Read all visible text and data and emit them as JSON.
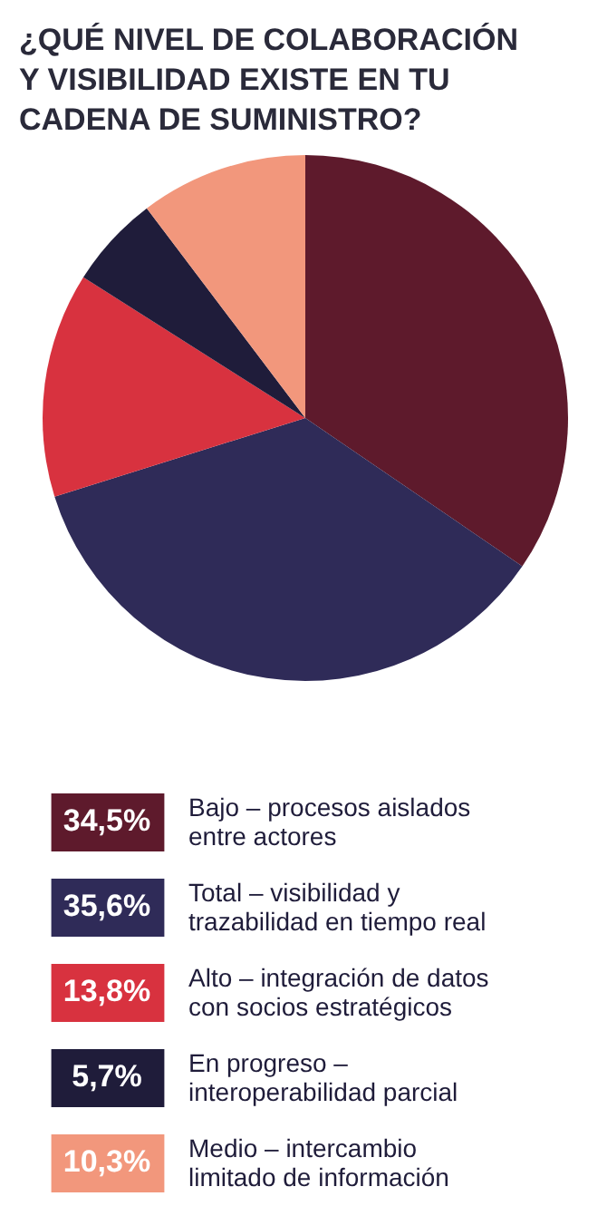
{
  "chart_data": {
    "type": "pie",
    "title": "¿QUÉ NIVEL DE COLABORACIÓN Y VISIBILIDAD EXISTE EN TU CADENA DE SUMINISTRO?",
    "categories": [
      "Bajo – procesos aislados entre actores",
      "Total – visibilidad y trazabilidad en tiempo real",
      "Alto – integración de datos con socios estratégicos",
      "En progreso – interoperabilidad parcial",
      "Medio – intercambio limitado de información"
    ],
    "values": [
      34.5,
      35.6,
      13.8,
      5.7,
      10.3
    ],
    "value_labels": [
      "34,5%",
      "35,6%",
      "13,8%",
      "5,7%",
      "10,3%"
    ],
    "colors": [
      "#5e1a2c",
      "#2f2b58",
      "#d8323f",
      "#1f1c3a",
      "#f2977c"
    ],
    "legend": "bottom"
  }
}
